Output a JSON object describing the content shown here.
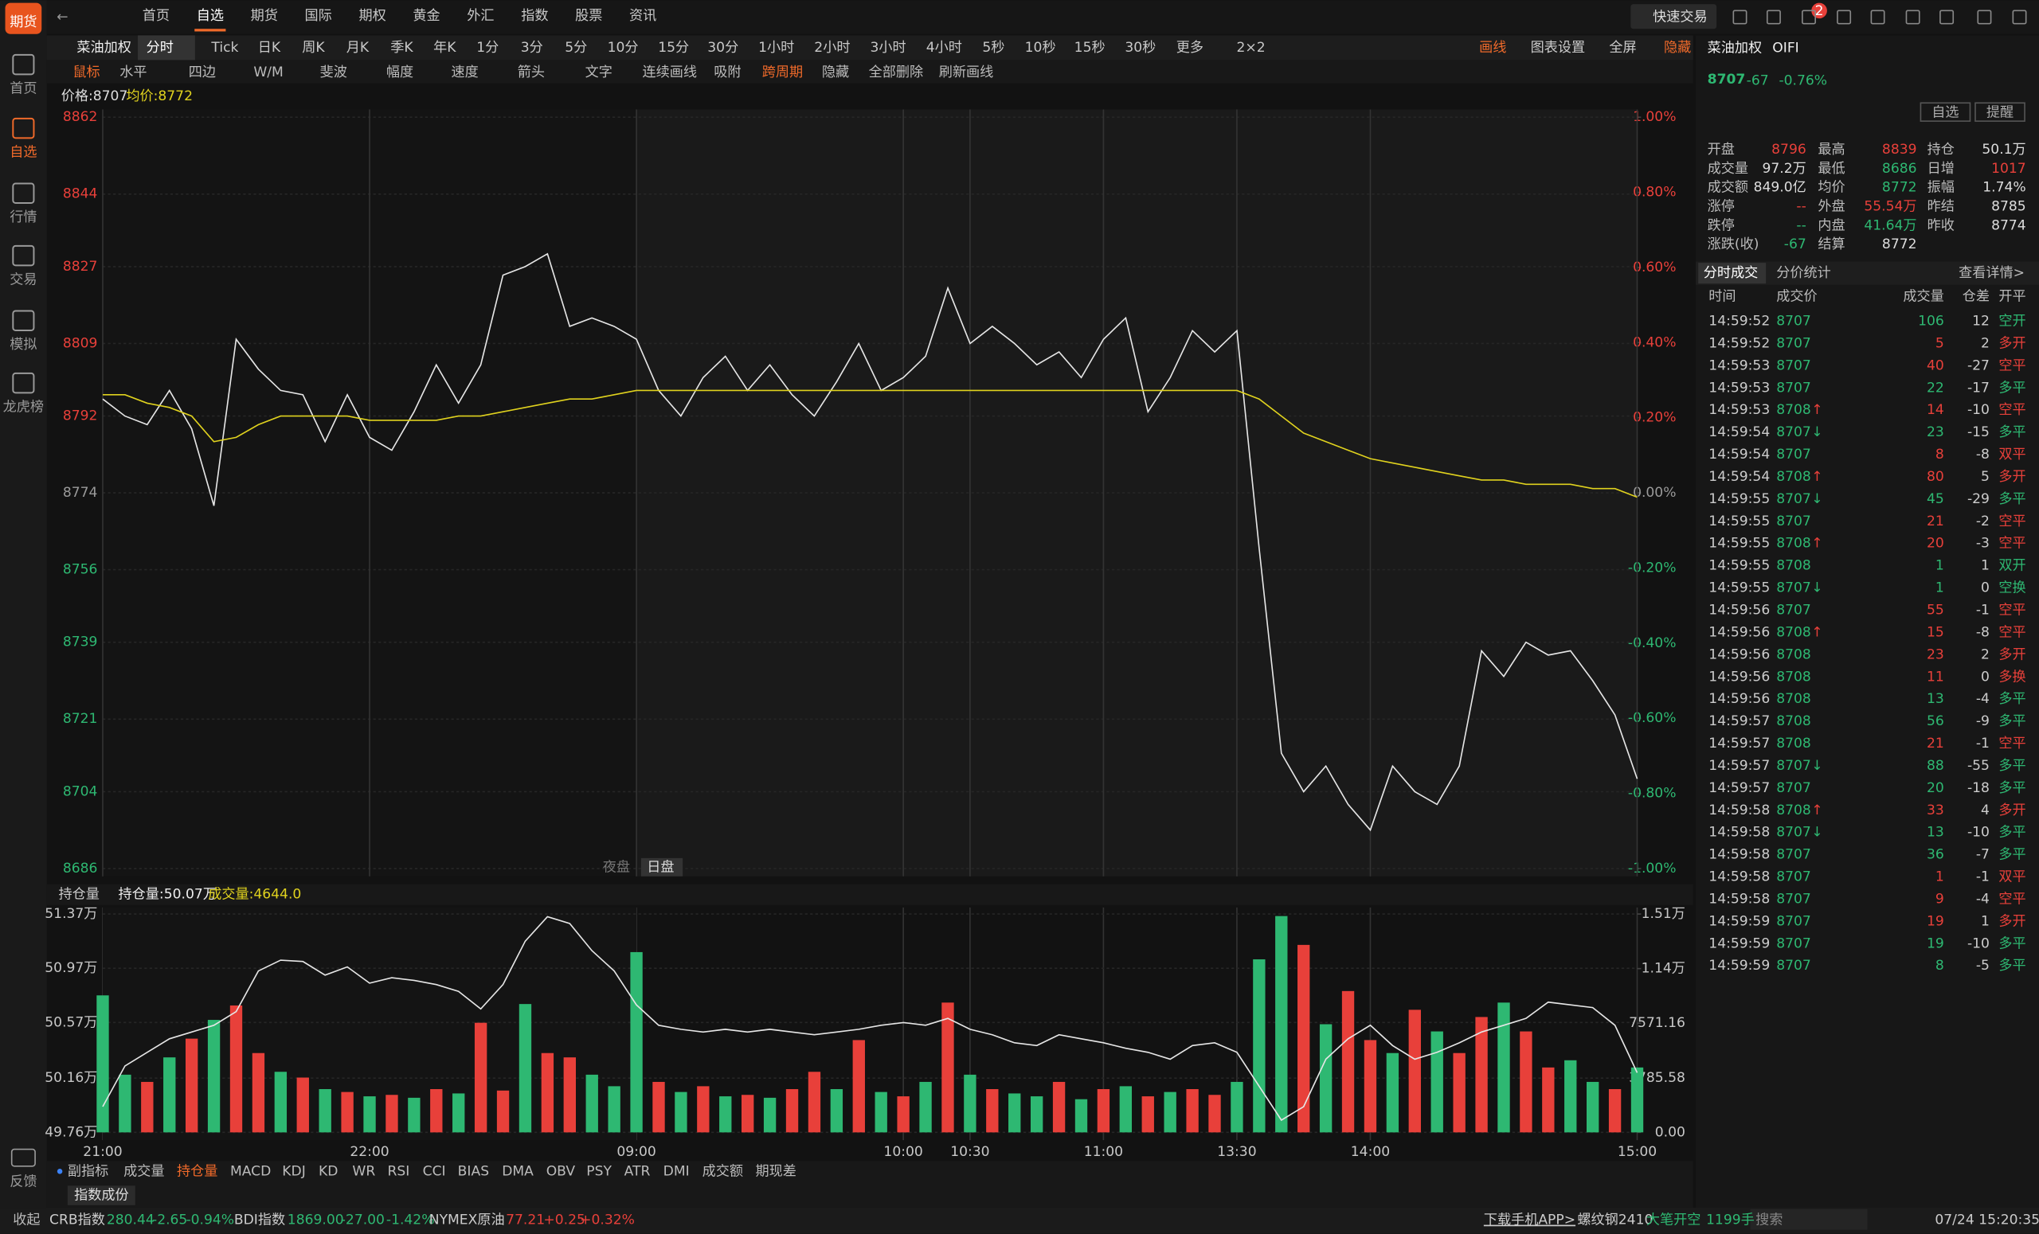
{
  "sidebar": {
    "logo": "期货",
    "items": [
      "首页",
      "自选",
      "行情",
      "交易",
      "模拟",
      "龙虎榜"
    ],
    "feedback": "反馈"
  },
  "top_nav": {
    "items": [
      "首页",
      "自选",
      "期货",
      "国际",
      "期权",
      "黄金",
      "外汇",
      "指数",
      "股票",
      "资讯"
    ],
    "quick_trade": "快速交易",
    "badge": 2
  },
  "toolbar": {
    "symbol": "菜油加权",
    "periods": [
      "分时",
      "Tick",
      "日K",
      "周K",
      "月K",
      "季K",
      "年K",
      "1分",
      "3分",
      "5分",
      "10分",
      "15分",
      "30分",
      "1小时",
      "2小时",
      "3小时",
      "4小时",
      "5秒",
      "10秒",
      "15秒",
      "30秒",
      "更多",
      "2×2"
    ],
    "right": [
      "画线",
      "图表设置",
      "全屏",
      "隐藏"
    ]
  },
  "draw_tools": [
    "鼠标",
    "水平",
    "四边",
    "W/M",
    "斐波",
    "幅度",
    "速度",
    "箭头",
    "文字",
    "连续画线",
    "吸附",
    "跨周期",
    "隐藏",
    "全部删除",
    "刷新画线"
  ],
  "chart": {
    "type": "line",
    "price_label": "价格:8707",
    "avg_label": "均价:8772",
    "session_labels": [
      "夜盘",
      "日盘"
    ],
    "xlim": [
      0,
      345
    ],
    "xticks": [
      {
        "value": 0,
        "label": "21:00"
      },
      {
        "value": 60,
        "label": "22:00"
      },
      {
        "value": 120,
        "label": "09:00"
      },
      {
        "value": 180,
        "label": "10:00"
      },
      {
        "value": 195,
        "label": "10:30"
      },
      {
        "value": 225,
        "label": "11:00"
      },
      {
        "value": 255,
        "label": "13:30"
      },
      {
        "value": 285,
        "label": "14:00"
      },
      {
        "value": 345,
        "label": "15:00"
      }
    ],
    "ylim": [
      8686,
      8862
    ],
    "yticks": [
      8862,
      8844,
      8827,
      8809,
      8792,
      8774,
      8756,
      8739,
      8721,
      8704,
      8686
    ],
    "y2lim": [
      -1,
      1
    ],
    "y2ticks": [
      {
        "value": 1,
        "label": "1.00%"
      },
      {
        "value": 0.8,
        "label": "0.80%"
      },
      {
        "value": 0.6,
        "label": "0.60%"
      },
      {
        "value": 0.4,
        "label": "0.40%"
      },
      {
        "value": 0.2,
        "label": "0.20%"
      },
      {
        "value": 0,
        "label": "0.00%"
      },
      {
        "value": -0.2,
        "label": "-0.20%"
      },
      {
        "value": -0.4,
        "label": "-0.40%"
      },
      {
        "value": -0.6,
        "label": "-0.60%"
      },
      {
        "value": -0.8,
        "label": "-0.80%"
      },
      {
        "value": -1,
        "label": "-1.00%"
      }
    ],
    "series": [
      {
        "color": "#e6e6e6",
        "values": [
          8796,
          8792,
          8790,
          8798,
          8789,
          8771,
          8810,
          8803,
          8798,
          8797,
          8786,
          8797,
          8787,
          8784,
          8793,
          8804,
          8795,
          8804,
          8825,
          8827,
          8830,
          8813,
          8815,
          8813,
          8810,
          8798,
          8792,
          8801,
          8806,
          8798,
          8804,
          8797,
          8792,
          8800,
          8809,
          8798,
          8801,
          8806,
          8822,
          8809,
          8813,
          8809,
          8804,
          8807,
          8801,
          8810,
          8815,
          8793,
          8801,
          8812,
          8807,
          8812,
          8761,
          8713,
          8704,
          8710,
          8701,
          8695,
          8710,
          8704,
          8701,
          8710,
          8737,
          8731,
          8739,
          8736,
          8737,
          8730,
          8722,
          8707
        ]
      },
      {
        "color": "#e0d21e",
        "values": [
          8797,
          8797,
          8795,
          8794,
          8792,
          8786,
          8787,
          8790,
          8792,
          8792,
          8792,
          8792,
          8791,
          8791,
          8791,
          8791,
          8792,
          8792,
          8793,
          8794,
          8795,
          8796,
          8796,
          8797,
          8798,
          8798,
          8798,
          8798,
          8798,
          8798,
          8798,
          8798,
          8798,
          8798,
          8798,
          8798,
          8798,
          8798,
          8798,
          8798,
          8798,
          8798,
          8798,
          8798,
          8798,
          8798,
          8798,
          8798,
          8798,
          8798,
          8798,
          8798,
          8796,
          8792,
          8788,
          8786,
          8784,
          8782,
          8781,
          8780,
          8779,
          8778,
          8777,
          8777,
          8776,
          8776,
          8776,
          8775,
          8775,
          8773
        ]
      }
    ]
  },
  "volume_panel": {
    "type": "bar",
    "indicator": "持仓量",
    "oi_label": "持仓量:50.07万",
    "vol_label": "成交量:4644.0",
    "ylim": [
      49.76,
      51.37
    ],
    "yticks": [
      {
        "value": 51.37,
        "label": "51.37万"
      },
      {
        "value": 50.97,
        "label": "50.97万"
      },
      {
        "value": 50.57,
        "label": "50.57万"
      },
      {
        "value": 50.16,
        "label": "50.16万"
      },
      {
        "value": 49.76,
        "label": "49.76万"
      }
    ],
    "y2lim": [
      0,
      15142.32
    ],
    "y2ticks": [
      {
        "value": 15142.32,
        "label": "1.51万"
      },
      {
        "value": 11356.74,
        "label": "1.14万"
      },
      7571.16,
      3785.58,
      {
        "value": 0,
        "label": "0.00"
      }
    ],
    "series": [
      {
        "color": "#e6e6e6",
        "values": [
          49.95,
          50.25,
          50.35,
          50.45,
          50.5,
          50.55,
          50.65,
          50.95,
          51.03,
          51.02,
          50.92,
          50.98,
          50.86,
          50.9,
          50.88,
          50.85,
          50.8,
          50.67,
          50.85,
          51.17,
          51.35,
          51.3,
          51.1,
          50.95,
          50.7,
          50.55,
          50.52,
          50.5,
          50.52,
          50.5,
          50.52,
          50.5,
          50.48,
          50.5,
          50.52,
          50.55,
          50.57,
          50.55,
          50.6,
          50.52,
          50.48,
          50.42,
          50.4,
          50.48,
          50.45,
          50.42,
          50.38,
          50.35,
          50.3,
          50.4,
          50.42,
          50.35,
          50.1,
          49.85,
          49.95,
          50.3,
          50.45,
          50.55,
          50.4,
          50.3,
          50.35,
          50.42,
          50.5,
          50.55,
          50.6,
          50.72,
          50.7,
          50.68,
          50.55,
          50.2
        ]
      },
      {
        "axis": "y2",
        "values": [
          9500,
          4000,
          3500,
          5200,
          6500,
          7800,
          8800,
          5500,
          4200,
          3800,
          3000,
          2800,
          2500,
          2600,
          2400,
          3000,
          2700,
          7600,
          2900,
          8900,
          5500,
          5200,
          4000,
          3200,
          12500,
          3500,
          2800,
          3200,
          2500,
          2600,
          2400,
          3000,
          4200,
          3000,
          6400,
          2800,
          2500,
          3500,
          9000,
          4000,
          3000,
          2700,
          2500,
          3500,
          2300,
          3000,
          3200,
          2500,
          2800,
          3000,
          2600,
          3500,
          12000,
          15000,
          13000,
          7500,
          9800,
          6400,
          5500,
          8500,
          7000,
          5500,
          8000,
          9000,
          7000,
          4500,
          5000,
          3500,
          3000,
          4500
        ],
        "colors": [
          "#2eb872",
          "#2eb872",
          "#e8403a",
          "#2eb872",
          "#e8403a",
          "#2eb872",
          "#e8403a",
          "#e8403a",
          "#2eb872",
          "#e8403a",
          "#2eb872",
          "#e8403a",
          "#2eb872",
          "#e8403a",
          "#2eb872",
          "#e8403a",
          "#2eb872",
          "#e8403a",
          "#e8403a",
          "#2eb872",
          "#e8403a",
          "#e8403a",
          "#2eb872",
          "#2eb872",
          "#2eb872",
          "#e8403a",
          "#2eb872",
          "#e8403a",
          "#2eb872",
          "#e8403a",
          "#2eb872",
          "#e8403a",
          "#e8403a",
          "#2eb872",
          "#e8403a",
          "#2eb872",
          "#e8403a",
          "#2eb872",
          "#e8403a",
          "#2eb872",
          "#e8403a",
          "#2eb872",
          "#2eb872",
          "#e8403a",
          "#2eb872",
          "#e8403a",
          "#2eb872",
          "#e8403a",
          "#2eb872",
          "#e8403a",
          "#e8403a",
          "#2eb872",
          "#2eb872",
          "#2eb872",
          "#e8403a",
          "#2eb872",
          "#e8403a",
          "#e8403a",
          "#2eb872",
          "#e8403a",
          "#2eb872",
          "#e8403a",
          "#e8403a",
          "#2eb872",
          "#e8403a",
          "#e8403a",
          "#2eb872",
          "#2eb872",
          "#e8403a",
          "#2eb872"
        ]
      }
    ]
  },
  "indicator_tabs": [
    "副指标",
    "成交量",
    "持仓量",
    "MACD",
    "KDJ",
    "KD",
    "WR",
    "RSI",
    "CCI",
    "BIAS",
    "DMA",
    "OBV",
    "PSY",
    "ATR",
    "DMI",
    "成交额",
    "期现差"
  ],
  "sub_tab": "指数成份",
  "quote": {
    "name": "菜油加权",
    "code": "OIFI",
    "price": 8707,
    "change": -67,
    "change_pct": "-0.76%",
    "buttons": [
      "自选",
      "提醒"
    ],
    "rows": [
      [
        "开盘",
        8796,
        "最高",
        8839,
        "持仓",
        "50.1万"
      ],
      [
        "成交量",
        "97.2万",
        "最低",
        8686,
        "日增",
        1017
      ],
      [
        "成交额",
        "849.0亿",
        "均价",
        8772,
        "振幅",
        "1.74%"
      ],
      [
        "涨停",
        "--",
        "外盘",
        "55.54万",
        "昨结",
        8785
      ],
      [
        "跌停",
        "--",
        "内盘",
        "41.64万",
        "昨收",
        8774
      ],
      [
        "涨跌(收)",
        -67,
        "结算",
        8772
      ]
    ]
  },
  "trades": {
    "tabs": [
      "分时成交",
      "分价统计"
    ],
    "detail": "查看详情>",
    "header": [
      "时间",
      "成交价",
      "成交量",
      "仓差",
      "开平"
    ],
    "rows": [
      {
        "time": "14:59:52",
        "price": 8707,
        "volume": 106,
        "oi_change": 12,
        "type": "空开",
        "color": "#2eb872"
      },
      {
        "time": "14:59:52",
        "price": 8707,
        "volume": 5,
        "oi_change": 2,
        "type": "多开",
        "color": "#e8403a"
      },
      {
        "time": "14:59:53",
        "price": 8707,
        "volume": 40,
        "oi_change": -27,
        "type": "空平",
        "color": "#e8403a"
      },
      {
        "time": "14:59:53",
        "price": 8707,
        "volume": 22,
        "oi_change": -17,
        "type": "多平",
        "color": "#2eb872"
      },
      {
        "time": "14:59:53",
        "price": 8708,
        "arrow": "↑",
        "volume": 14,
        "oi_change": -10,
        "type": "空平",
        "color": "#e8403a"
      },
      {
        "time": "14:59:54",
        "price": 8707,
        "arrow": "↓",
        "volume": 23,
        "oi_change": -15,
        "type": "多平",
        "color": "#2eb872"
      },
      {
        "time": "14:59:54",
        "price": 8707,
        "volume": 8,
        "oi_change": -8,
        "type": "双平",
        "color": "#e8403a"
      },
      {
        "time": "14:59:54",
        "price": 8708,
        "arrow": "↑",
        "volume": 80,
        "oi_change": 5,
        "type": "多开",
        "color": "#e8403a"
      },
      {
        "time": "14:59:55",
        "price": 8707,
        "arrow": "↓",
        "volume": 45,
        "oi_change": -29,
        "type": "多平",
        "color": "#2eb872"
      },
      {
        "time": "14:59:55",
        "price": 8707,
        "volume": 21,
        "oi_change": -2,
        "type": "空平",
        "color": "#e8403a"
      },
      {
        "time": "14:59:55",
        "price": 8708,
        "arrow": "↑",
        "volume": 20,
        "oi_change": -3,
        "type": "空平",
        "color": "#e8403a"
      },
      {
        "time": "14:59:55",
        "price": 8708,
        "volume": 1,
        "oi_change": 1,
        "type": "双开",
        "color": "#2eb872"
      },
      {
        "time": "14:59:55",
        "price": 8707,
        "arrow": "↓",
        "volume": 1,
        "oi_change": 0,
        "type": "空换",
        "color": "#2eb872"
      },
      {
        "time": "14:59:56",
        "price": 8707,
        "volume": 55,
        "oi_change": -1,
        "type": "空平",
        "color": "#e8403a"
      },
      {
        "time": "14:59:56",
        "price": 8708,
        "arrow": "↑",
        "volume": 15,
        "oi_change": -8,
        "type": "空平",
        "color": "#e8403a"
      },
      {
        "time": "14:59:56",
        "price": 8708,
        "volume": 23,
        "oi_change": 2,
        "type": "多开",
        "color": "#e8403a"
      },
      {
        "time": "14:59:56",
        "price": 8708,
        "volume": 11,
        "oi_change": 0,
        "type": "多换",
        "color": "#e8403a"
      },
      {
        "time": "14:59:56",
        "price": 8708,
        "volume": 13,
        "oi_change": -4,
        "type": "多平",
        "color": "#2eb872"
      },
      {
        "time": "14:59:57",
        "price": 8708,
        "volume": 56,
        "oi_change": -9,
        "type": "多平",
        "color": "#2eb872"
      },
      {
        "time": "14:59:57",
        "price": 8708,
        "volume": 21,
        "oi_change": -1,
        "type": "空平",
        "color": "#e8403a"
      },
      {
        "time": "14:59:57",
        "price": 8707,
        "arrow": "↓",
        "volume": 88,
        "oi_change": -55,
        "type": "多平",
        "color": "#2eb872"
      },
      {
        "time": "14:59:57",
        "price": 8707,
        "volume": 20,
        "oi_change": -18,
        "type": "多平",
        "color": "#2eb872"
      },
      {
        "time": "14:59:58",
        "price": 8708,
        "arrow": "↑",
        "volume": 33,
        "oi_change": 4,
        "type": "多开",
        "color": "#e8403a"
      },
      {
        "time": "14:59:58",
        "price": 8707,
        "arrow": "↓",
        "volume": 13,
        "oi_change": -10,
        "type": "多平",
        "color": "#2eb872"
      },
      {
        "time": "14:59:58",
        "price": 8707,
        "volume": 36,
        "oi_change": -7,
        "type": "多平",
        "color": "#2eb872"
      },
      {
        "time": "14:59:58",
        "price": 8707,
        "volume": 1,
        "oi_change": -1,
        "type": "双平",
        "color": "#e8403a"
      },
      {
        "time": "14:59:58",
        "price": 8707,
        "volume": 9,
        "oi_change": -4,
        "type": "空平",
        "color": "#e8403a"
      },
      {
        "time": "14:59:59",
        "price": 8707,
        "volume": 19,
        "oi_change": 1,
        "type": "多开",
        "color": "#e8403a"
      },
      {
        "time": "14:59:59",
        "price": 8707,
        "volume": 19,
        "oi_change": -10,
        "type": "多平",
        "color": "#2eb872"
      },
      {
        "time": "14:59:59",
        "price": 8707,
        "volume": 8,
        "oi_change": -5,
        "type": "多平",
        "color": "#2eb872"
      }
    ]
  },
  "status_bar": {
    "collapse": "收起",
    "tickers": [
      {
        "name": "CRB指数",
        "price": "280.44",
        "change": "-2.65",
        "pct": "-0.94%"
      },
      {
        "name": "BDI指数",
        "price": "1869.00",
        "change": "-27.00",
        "pct": "-1.42%"
      },
      {
        "name": "NYMEX原油",
        "price": "77.21",
        "change": "+0.25",
        "pct": "+0.32%"
      }
    ],
    "app": "下载手机APP>",
    "alert": {
      "symbol": "螺纹钢2410",
      "action": "大笔开空",
      "size": "1199手"
    },
    "search": "搜索",
    "time": "07/24 15:20:35"
  }
}
